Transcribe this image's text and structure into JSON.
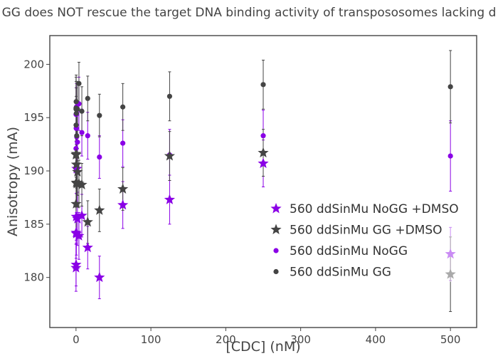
{
  "chart_data": {
    "type": "scatter",
    "title": "GG does NOT rescue the target DNA binding activity of transpososomes lacking d",
    "xlabel": "[CDC] (nM)",
    "ylabel": "Anisotropy (mA)",
    "xlim": [
      -35,
      535
    ],
    "ylim": [
      175.3,
      202.7
    ],
    "xticks": [
      0,
      100,
      200,
      300,
      400,
      500
    ],
    "yticks": [
      180,
      185,
      190,
      195,
      200
    ],
    "legend_position": "right",
    "x": [
      0,
      0.06,
      0.12,
      0.24,
      0.49,
      0.98,
      1.95,
      3.9,
      7.8,
      15.6,
      31.3,
      62.5,
      125,
      250,
      500
    ],
    "series": [
      {
        "name": "560 ddSinMu NoGG +DMSO",
        "marker": "star",
        "color": "#8a00e6",
        "y": [
          180.9,
          184.2,
          181.2,
          185.7,
          184.1,
          190.2,
          185.5,
          183.9,
          185.8,
          182.8,
          180.0,
          186.8,
          187.3,
          190.7,
          182.2
        ],
        "error": [
          2.2,
          2.4,
          2.0,
          2.2,
          2.0,
          2.4,
          2.5,
          2.2,
          2.0,
          2.0,
          2.0,
          2.2,
          2.3,
          2.2,
          2.5
        ]
      },
      {
        "name": "560 ddSinMu GG +DMSO",
        "marker": "star",
        "color": "#444444",
        "y": [
          191.5,
          186.9,
          191.6,
          188.9,
          190.6,
          188.8,
          189.9,
          188.8,
          188.7,
          185.2,
          186.3,
          188.3,
          191.4,
          191.7,
          180.3
        ],
        "error": [
          2.5,
          2.5,
          2.5,
          2.3,
          2.2,
          2.2,
          2.2,
          2.2,
          2.0,
          2.0,
          2.0,
          2.0,
          2.3,
          2.2,
          3.5
        ]
      },
      {
        "name": "560 ddSinMu NoGG",
        "marker": "circle",
        "color": "#8a00e6",
        "y": [
          192.1,
          195.3,
          190.2,
          194.0,
          196.0,
          193.2,
          192.7,
          196.3,
          193.6,
          193.3,
          191.3,
          192.6,
          191.5,
          193.3,
          191.4
        ],
        "error": [
          2.3,
          2.5,
          2.3,
          2.3,
          2.2,
          2.2,
          2.5,
          2.5,
          2.2,
          2.2,
          2.0,
          2.2,
          2.4,
          2.4,
          3.3
        ]
      },
      {
        "name": "560 ddSinMu GG",
        "marker": "circle",
        "color": "#444444",
        "y": [
          195.8,
          195.9,
          194.3,
          196.5,
          195.4,
          193.3,
          195.8,
          198.2,
          195.6,
          196.8,
          195.2,
          196.0,
          197.0,
          198.1,
          197.9
        ],
        "error": [
          3.0,
          2.5,
          2.7,
          2.5,
          2.4,
          2.4,
          2.6,
          2.0,
          2.3,
          2.1,
          2.0,
          2.2,
          2.3,
          2.3,
          3.4
        ]
      }
    ]
  }
}
